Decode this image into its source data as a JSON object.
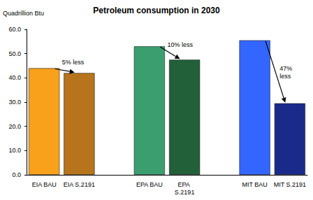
{
  "chart_data": {
    "type": "bar",
    "title": "Petroleum consumption in 2030",
    "y_label": "Quadrillion Btu",
    "categories": [
      "EIA BAU",
      "EIA S.2191",
      null,
      "EPA BAU",
      "EPA S.2191",
      null,
      "MIT BAU",
      "MIT S.2191"
    ],
    "values": [
      44,
      42,
      null,
      53,
      47.5,
      null,
      55.5,
      29.5
    ],
    "colors": [
      "#f9a11b",
      "#b8741c",
      null,
      "#3a9e6e",
      "#22603a",
      null,
      "#3366ff",
      "#1a2a8a"
    ],
    "ylim": [
      0,
      60
    ],
    "yticks": [
      {
        "value": 0,
        "label": "0.0"
      },
      {
        "value": 10,
        "label": "10.0"
      },
      {
        "value": 20,
        "label": "20.0"
      },
      {
        "value": 30,
        "label": "30.0"
      },
      {
        "value": 40,
        "label": "40.0"
      },
      {
        "value": 50,
        "label": "50.0"
      },
      {
        "value": 60,
        "label": "60.0"
      }
    ],
    "grid": false,
    "annotations": [
      {
        "text": "5% less",
        "from": "EIA BAU",
        "to": "EIA S.2191"
      },
      {
        "text": "10% less",
        "from": "EPA BAU",
        "to": "EPA S.2191"
      },
      {
        "text": "47% less",
        "from": "MIT BAU",
        "to": "MIT S.2191"
      }
    ]
  }
}
